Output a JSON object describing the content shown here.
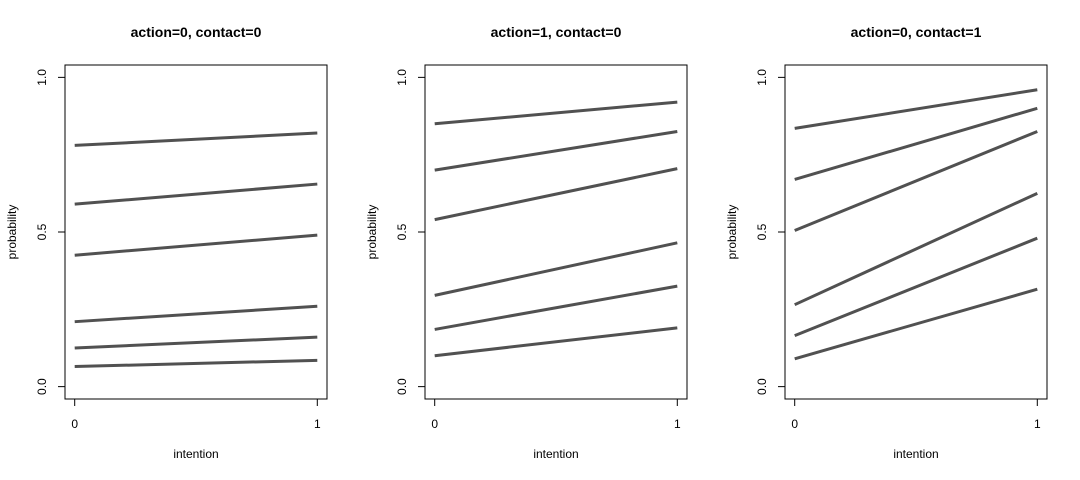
{
  "chart_data": [
    {
      "type": "line",
      "title": "action=0, contact=0",
      "xlabel": "intention",
      "ylabel": "probability",
      "x": [
        0,
        1
      ],
      "xlim": [
        -0.04,
        1.04
      ],
      "ylim": [
        -0.04,
        1.04
      ],
      "xticks": [
        0,
        1
      ],
      "yticks": [
        {
          "value": 0,
          "label": "0.0"
        },
        0.5,
        {
          "value": 1,
          "label": "1.0"
        }
      ],
      "series": [
        {
          "color": "#333333",
          "values": [
            0.78,
            0.82
          ]
        },
        {
          "color": "#333333",
          "values": [
            0.59,
            0.655
          ]
        },
        {
          "color": "#333333",
          "values": [
            0.425,
            0.49
          ]
        },
        {
          "color": "#333333",
          "values": [
            0.21,
            0.26
          ]
        },
        {
          "color": "#333333",
          "values": [
            0.125,
            0.16
          ]
        },
        {
          "color": "#333333",
          "values": [
            0.065,
            0.085
          ]
        }
      ]
    },
    {
      "type": "line",
      "title": "action=1, contact=0",
      "xlabel": "intention",
      "ylabel": "probability",
      "x": [
        0,
        1
      ],
      "xlim": [
        -0.04,
        1.04
      ],
      "ylim": [
        -0.04,
        1.04
      ],
      "xticks": [
        0,
        1
      ],
      "yticks": [
        {
          "value": 0,
          "label": "0.0"
        },
        0.5,
        {
          "value": 1,
          "label": "1.0"
        }
      ],
      "series": [
        {
          "color": "#333333",
          "values": [
            0.85,
            0.92
          ]
        },
        {
          "color": "#333333",
          "values": [
            0.7,
            0.825
          ]
        },
        {
          "color": "#333333",
          "values": [
            0.54,
            0.705
          ]
        },
        {
          "color": "#333333",
          "values": [
            0.295,
            0.465
          ]
        },
        {
          "color": "#333333",
          "values": [
            0.185,
            0.325
          ]
        },
        {
          "color": "#333333",
          "values": [
            0.1,
            0.19
          ]
        }
      ]
    },
    {
      "type": "line",
      "title": "action=0, contact=1",
      "xlabel": "intention",
      "ylabel": "probability",
      "x": [
        0,
        1
      ],
      "xlim": [
        -0.04,
        1.04
      ],
      "ylim": [
        -0.04,
        1.04
      ],
      "xticks": [
        0,
        1
      ],
      "yticks": [
        {
          "value": 0,
          "label": "0.0"
        },
        0.5,
        {
          "value": 1,
          "label": "1.0"
        }
      ],
      "series": [
        {
          "color": "#333333",
          "values": [
            0.835,
            0.96
          ]
        },
        {
          "color": "#333333",
          "values": [
            0.67,
            0.9
          ]
        },
        {
          "color": "#333333",
          "values": [
            0.505,
            0.825
          ]
        },
        {
          "color": "#333333",
          "values": [
            0.265,
            0.625
          ]
        },
        {
          "color": "#333333",
          "values": [
            0.165,
            0.48
          ]
        },
        {
          "color": "#333333",
          "values": [
            0.09,
            0.315
          ]
        }
      ]
    }
  ]
}
